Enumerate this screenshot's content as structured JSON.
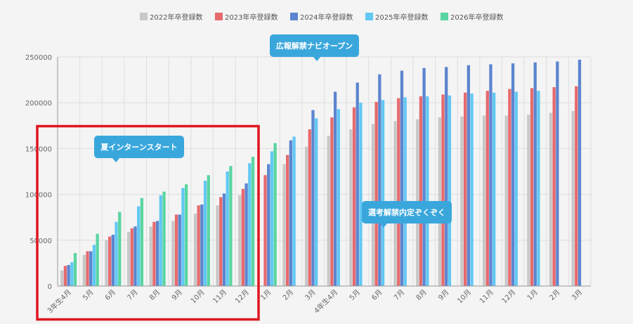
{
  "colors": {
    "grid": "#dddddd",
    "axis": "#999999",
    "tick_text": "#666666",
    "callout_bg": "#3aa7dc",
    "callout_text": "#ffffff",
    "highlight_box": "#e0141e"
  },
  "chart_data": {
    "type": "bar",
    "categories": [
      "3年生4月",
      "5月",
      "6月",
      "7月",
      "8月",
      "9月",
      "10月",
      "11月",
      "12月",
      "1月",
      "2月",
      "3月",
      "4年生4月",
      "5月",
      "6月",
      "7月",
      "8月",
      "9月",
      "10月",
      "11月",
      "12月",
      "1月",
      "2月",
      "3月"
    ],
    "series": [
      {
        "name": "2022年卒登録数",
        "color": "#c8c8c8",
        "values": [
          17000,
          34000,
          50000,
          59000,
          65000,
          71000,
          79000,
          88000,
          99000,
          null,
          133000,
          152000,
          164000,
          171000,
          177000,
          180000,
          182000,
          184000,
          185000,
          186000,
          186000,
          187000,
          189000,
          191000
        ]
      },
      {
        "name": "2023年卒登録数",
        "color": "#e66a6e",
        "values": [
          22000,
          38000,
          54000,
          63000,
          70000,
          78000,
          88000,
          97000,
          106000,
          121000,
          143000,
          171000,
          184000,
          195000,
          201000,
          205000,
          207000,
          209000,
          211000,
          213000,
          215000,
          216000,
          217000,
          218000
        ]
      },
      {
        "name": "2024年卒登録数",
        "color": "#5c85cf",
        "values": [
          23000,
          38000,
          56000,
          65000,
          71000,
          78000,
          89000,
          101000,
          112000,
          133000,
          159000,
          192000,
          212000,
          222000,
          231000,
          235000,
          238000,
          239000,
          241000,
          242000,
          243000,
          244000,
          245000,
          247000
        ]
      },
      {
        "name": "2025年卒登録数",
        "color": "#62c8f4",
        "values": [
          26000,
          45000,
          70000,
          87000,
          99000,
          107000,
          115000,
          125000,
          134000,
          147000,
          163000,
          183000,
          193000,
          200000,
          203000,
          206000,
          207000,
          208000,
          210000,
          211000,
          212000,
          213000,
          null,
          null
        ]
      },
      {
        "name": "2026年卒登録数",
        "color": "#5ad5a1",
        "values": [
          36000,
          57000,
          81000,
          96000,
          103000,
          111000,
          121000,
          131000,
          141000,
          156000,
          null,
          null,
          null,
          null,
          null,
          null,
          null,
          null,
          null,
          null,
          null,
          null,
          null,
          null
        ]
      }
    ],
    "y_ticks": [
      "0",
      "50000",
      "100000",
      "150000",
      "200000",
      "250000"
    ],
    "ylim": [
      0,
      250000
    ],
    "grid": true,
    "legend_position": "top-center",
    "annotations": [
      {
        "text": "夏インターンスタート",
        "category_index": 1,
        "value": 147000
      },
      {
        "text": "広報解禁ナビオープン",
        "category_index": 11,
        "value": 247000
      },
      {
        "text": "選考解禁内定ぞくぞく",
        "category_index": 15,
        "value": 70000
      }
    ]
  }
}
